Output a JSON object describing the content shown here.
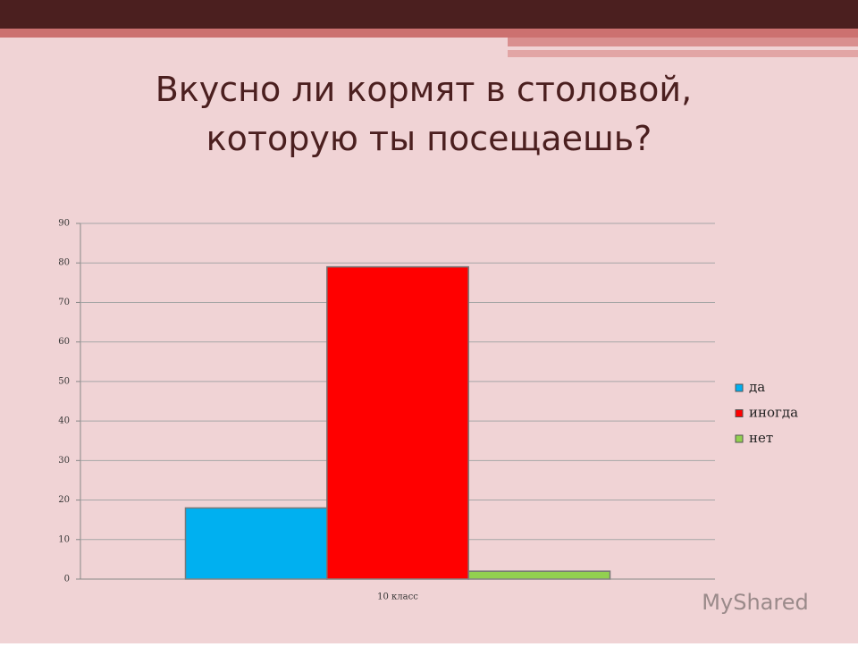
{
  "chart_data": {
    "type": "bar",
    "title": "Вкусно ли кормят в  столовой, которую ты посещаешь?",
    "categories": [
      "10 класс"
    ],
    "series": [
      {
        "name": "да",
        "color": "#00b0f0",
        "values": [
          18
        ]
      },
      {
        "name": "иногда",
        "color": "#ff0000",
        "values": [
          79
        ]
      },
      {
        "name": "нет",
        "color": "#92d050",
        "values": [
          2
        ]
      }
    ],
    "ylim": [
      0,
      90
    ],
    "yticks": [
      0,
      10,
      20,
      30,
      40,
      50,
      60,
      70,
      80,
      90
    ],
    "grid": true,
    "legend": "right"
  },
  "watermark": "MyShared"
}
